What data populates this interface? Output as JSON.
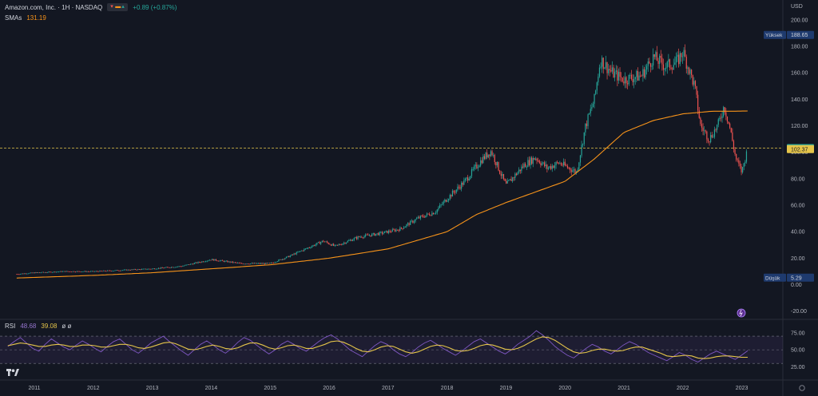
{
  "header": {
    "symbol": "Amazon.com, Inc. · 1H · NASDAQ",
    "change": "+0.89 (+0.87%)",
    "sma_label": "SMAs",
    "sma_value": "131.19",
    "rsi_label": "RSI",
    "rsi_value": "48.68",
    "rsi_ma_value": "39.08",
    "rsi_extra": "ø ø"
  },
  "icons": {
    "alert": "alert-clock-icon",
    "settings": "settings-gear-icon",
    "logo": "tradingview-logo-icon"
  },
  "colors": {
    "background": "#131722",
    "up": "#26a69a",
    "down": "#ef5350",
    "sma": "#f7931a",
    "rsi": "#7e57c2",
    "rsi_ma": "#e5c54a",
    "price_line": "#e5c54a"
  },
  "chart_data": [
    {
      "type": "candlestick",
      "title": "Amazon.com, Inc. · 1H · NASDAQ",
      "currency": "USD",
      "ylim": [
        -25,
        215
      ],
      "y_ticks": [
        -20,
        0,
        20,
        40,
        60,
        80,
        100,
        120,
        140,
        160,
        180,
        200
      ],
      "x_ticks": [
        "2011",
        "2012",
        "2013",
        "2014",
        "2015",
        "2016",
        "2017",
        "2018",
        "2019",
        "2020",
        "2021",
        "2022",
        "2023"
      ],
      "price_labels": {
        "high_label": "Yüksek",
        "high": 188.65,
        "low_label": "Düşük",
        "low": 5.29,
        "last": 103.13,
        "previous_line": 102.37
      },
      "series": [
        {
          "name": "Close",
          "x": [
            2010.7,
            2011.0,
            2011.5,
            2012.0,
            2012.5,
            2013.0,
            2013.5,
            2014.0,
            2014.5,
            2015.0,
            2015.3,
            2015.6,
            2015.9,
            2016.1,
            2016.5,
            2016.9,
            2017.2,
            2017.5,
            2017.8,
            2018.0,
            2018.3,
            2018.6,
            2018.75,
            2018.9,
            2019.0,
            2019.3,
            2019.5,
            2019.7,
            2019.9,
            2020.2,
            2020.35,
            2020.5,
            2020.6,
            2020.8,
            2021.0,
            2021.3,
            2021.5,
            2021.7,
            2021.9,
            2022.0,
            2022.2,
            2022.3,
            2022.45,
            2022.6,
            2022.7,
            2022.8,
            2022.9,
            2023.0,
            2023.1
          ],
          "values": [
            8,
            9,
            10,
            10,
            11,
            12,
            14,
            19,
            16,
            16,
            21,
            27,
            33,
            29,
            36,
            39,
            42,
            50,
            55,
            65,
            78,
            95,
            101,
            85,
            75,
            90,
            96,
            88,
            92,
            85,
            120,
            140,
            170,
            160,
            155,
            158,
            172,
            165,
            168,
            176,
            150,
            120,
            110,
            121,
            135,
            118,
            95,
            85,
            103
          ]
        },
        {
          "name": "SMAs",
          "x": [
            2010.7,
            2012.0,
            2013.0,
            2014.0,
            2015.0,
            2016.0,
            2017.0,
            2018.0,
            2018.5,
            2019.0,
            2019.5,
            2020.0,
            2020.5,
            2021.0,
            2021.5,
            2022.0,
            2022.5,
            2022.9,
            2023.1
          ],
          "values": [
            5,
            7,
            9,
            12,
            15,
            20,
            27,
            40,
            53,
            62,
            70,
            78,
            95,
            115,
            124,
            129,
            131,
            131,
            131.19
          ]
        }
      ]
    },
    {
      "type": "line",
      "title": "RSI",
      "ylim": [
        15,
        90
      ],
      "y_ticks": [
        25,
        50,
        75
      ],
      "upper_band": 70,
      "lower_band": 30,
      "series": [
        {
          "name": "RSI",
          "values": [
            55,
            62,
            68,
            60,
            52,
            48,
            58,
            66,
            60,
            54,
            50,
            57,
            63,
            58,
            52,
            47,
            55,
            62,
            66,
            58,
            50,
            45,
            52,
            60,
            65,
            70,
            62,
            55,
            48,
            42,
            50,
            58,
            63,
            57,
            50,
            45,
            52,
            61,
            68,
            64,
            57,
            50,
            44,
            50,
            58,
            63,
            58,
            52,
            48,
            55,
            62,
            68,
            72,
            66,
            58,
            50,
            45,
            40,
            48,
            56,
            62,
            58,
            50,
            44,
            40,
            46,
            54,
            60,
            64,
            58,
            52,
            47,
            42,
            48,
            55,
            62,
            66,
            60,
            54,
            48,
            44,
            50,
            58,
            64,
            70,
            78,
            72,
            64,
            55,
            48,
            42,
            38,
            45,
            52,
            58,
            54,
            48,
            44,
            50,
            57,
            62,
            58,
            52,
            46,
            42,
            38,
            34,
            40,
            46,
            42,
            36,
            32,
            38,
            44,
            48,
            44,
            40,
            36,
            42,
            48.68
          ]
        },
        {
          "name": "MA",
          "values": [
            56,
            58,
            60,
            59,
            57,
            55,
            55,
            57,
            58,
            57,
            55,
            55,
            57,
            57,
            56,
            54,
            54,
            56,
            58,
            58,
            56,
            53,
            52,
            54,
            57,
            60,
            61,
            59,
            55,
            51,
            50,
            52,
            55,
            57,
            55,
            52,
            51,
            53,
            57,
            60,
            60,
            57,
            53,
            51,
            53,
            56,
            57,
            55,
            52,
            52,
            55,
            58,
            62,
            63,
            61,
            57,
            52,
            48,
            47,
            50,
            54,
            56,
            55,
            51,
            47,
            45,
            47,
            51,
            55,
            57,
            56,
            53,
            49,
            48,
            49,
            52,
            56,
            58,
            57,
            54,
            51,
            50,
            52,
            56,
            61,
            66,
            69,
            68,
            64,
            58,
            52,
            47,
            45,
            46,
            49,
            51,
            51,
            49,
            48,
            49,
            52,
            54,
            54,
            51,
            48,
            45,
            41,
            40,
            41,
            42,
            41,
            38,
            37,
            38,
            40,
            41,
            41,
            40,
            39,
            39.08
          ]
        }
      ]
    }
  ]
}
